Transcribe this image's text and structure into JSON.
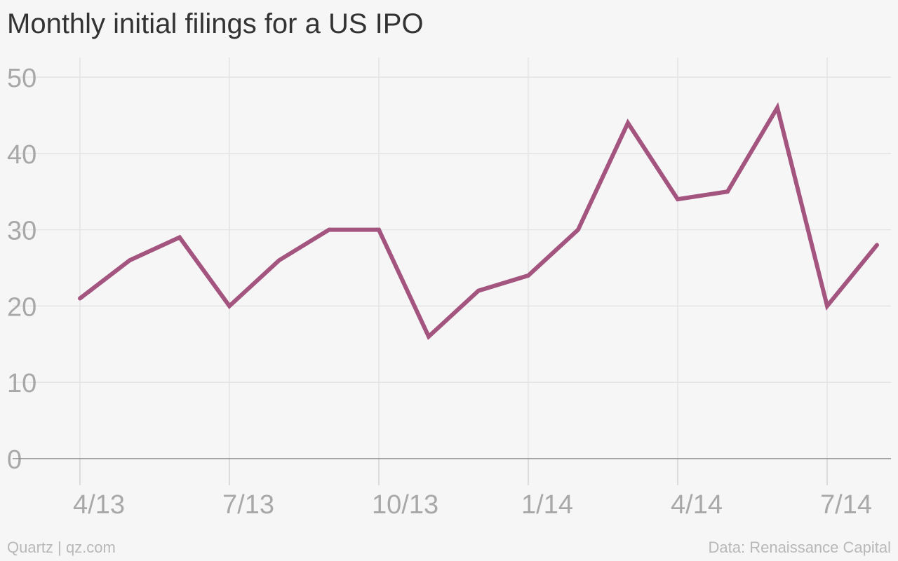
{
  "chart_data": {
    "type": "line",
    "title": "Monthly initial filings for a US IPO",
    "xlabel": "",
    "ylabel": "",
    "x": [
      "4/13",
      "5/13",
      "6/13",
      "7/13",
      "8/13",
      "9/13",
      "10/13",
      "11/13",
      "12/13",
      "1/14",
      "2/14",
      "3/14",
      "4/14",
      "5/14",
      "6/14",
      "7/14",
      "8/14"
    ],
    "x_tick_labels": [
      "4/13",
      "7/13",
      "10/13",
      "1/14",
      "4/14",
      "7/14"
    ],
    "y_tick_labels": [
      "0",
      "10",
      "20",
      "30",
      "40",
      "50"
    ],
    "ylim": [
      0,
      50
    ],
    "grid": true,
    "series": [
      {
        "color": "#a3547f",
        "values": [
          21,
          26,
          29,
          20,
          26,
          30,
          30,
          16,
          22,
          24,
          30,
          44,
          34,
          35,
          46,
          20,
          28
        ]
      }
    ]
  },
  "footer": {
    "source_credit": "Quartz | qz.com",
    "data_credit": "Data: Renaissance Capital"
  }
}
